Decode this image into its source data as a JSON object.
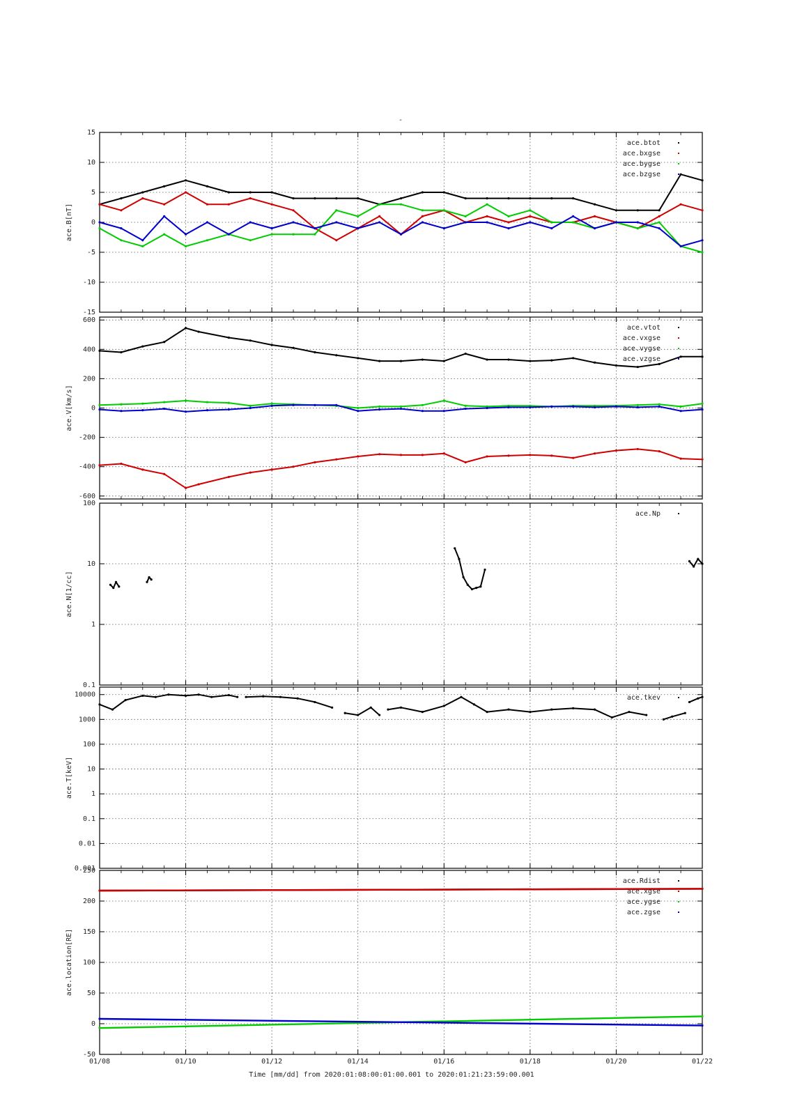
{
  "page": {
    "title": "-",
    "x_caption": "Time [mm/dd]  from 2020:01:08:00:01:00.001  to  2020:01:21:23:59:00.001"
  },
  "x_axis": {
    "range_days": [
      0,
      14
    ],
    "tick_labels": [
      "01/08",
      "01/10",
      "01/12",
      "01/14",
      "01/16",
      "01/18",
      "01/20",
      "01/22"
    ]
  },
  "colors": {
    "black": "#000000",
    "red": "#d00000",
    "green": "#00cc00",
    "blue": "#0000cc"
  },
  "chart_data": [
    {
      "type": "scatter",
      "ylabel": "ace.B[nT]",
      "ylim": [
        -15,
        15
      ],
      "yticks": [
        15,
        10,
        5,
        0,
        -5,
        -10,
        -15
      ],
      "grid": true,
      "legend_position": "top-right",
      "series": [
        {
          "name": "ace.btot",
          "color": "#000000",
          "x": [
            0,
            0.5,
            1,
            1.5,
            2,
            2.5,
            3,
            3.5,
            4,
            4.5,
            5,
            5.5,
            6,
            6.5,
            7,
            7.5,
            8,
            8.5,
            9,
            9.5,
            10,
            10.5,
            11,
            11.5,
            12,
            12.5,
            13,
            13.5,
            14
          ],
          "y": [
            3,
            4,
            5,
            6,
            7,
            6,
            5,
            5,
            5,
            4,
            4,
            4,
            4,
            3,
            4,
            5,
            5,
            4,
            4,
            4,
            4,
            4,
            4,
            3,
            2,
            2,
            2,
            8,
            7
          ]
        },
        {
          "name": "ace.bxgse",
          "color": "#d00000",
          "x": [
            0,
            0.5,
            1,
            1.5,
            2,
            2.5,
            3,
            3.5,
            4,
            4.5,
            5,
            5.5,
            6,
            6.5,
            7,
            7.5,
            8,
            8.5,
            9,
            9.5,
            10,
            10.5,
            11,
            11.5,
            12,
            12.5,
            13,
            13.5,
            14
          ],
          "y": [
            3,
            2,
            4,
            3,
            5,
            3,
            3,
            4,
            3,
            2,
            -1,
            -3,
            -1,
            1,
            -2,
            1,
            2,
            0,
            1,
            0,
            1,
            0,
            0,
            1,
            0,
            -1,
            1,
            3,
            2
          ]
        },
        {
          "name": "ace.bygse",
          "color": "#00cc00",
          "x": [
            0,
            0.5,
            1,
            1.5,
            2,
            2.5,
            3,
            3.5,
            4,
            4.5,
            5,
            5.5,
            6,
            6.5,
            7,
            7.5,
            8,
            8.5,
            9,
            9.5,
            10,
            10.5,
            11,
            11.5,
            12,
            12.5,
            13,
            13.5,
            14
          ],
          "y": [
            -1,
            -3,
            -4,
            -2,
            -4,
            -3,
            -2,
            -3,
            -2,
            -2,
            -2,
            2,
            1,
            3,
            3,
            2,
            2,
            1,
            3,
            1,
            2,
            0,
            0,
            -1,
            0,
            -1,
            0,
            -4,
            -5
          ]
        },
        {
          "name": "ace.bzgse",
          "color": "#0000cc",
          "x": [
            0,
            0.5,
            1,
            1.5,
            2,
            2.5,
            3,
            3.5,
            4,
            4.5,
            5,
            5.5,
            6,
            6.5,
            7,
            7.5,
            8,
            8.5,
            9,
            9.5,
            10,
            10.5,
            11,
            11.5,
            12,
            12.5,
            13,
            13.5,
            14
          ],
          "y": [
            0,
            -1,
            -3,
            1,
            -2,
            0,
            -2,
            0,
            -1,
            0,
            -1,
            0,
            -1,
            0,
            -2,
            0,
            -1,
            0,
            0,
            -1,
            0,
            -1,
            1,
            -1,
            0,
            0,
            -1,
            -4,
            -3
          ]
        }
      ]
    },
    {
      "type": "scatter",
      "ylabel": "ace.V[km/s]",
      "ylim": [
        -620,
        620
      ],
      "yticks": [
        600,
        400,
        200,
        0,
        -200,
        -400,
        -600
      ],
      "grid": true,
      "legend_position": "top-right",
      "series": [
        {
          "name": "ace.vtot",
          "color": "#000000",
          "x": [
            0,
            0.5,
            1,
            1.5,
            2,
            2.3,
            3,
            3.5,
            4,
            4.5,
            5,
            5.5,
            6,
            6.5,
            7,
            7.5,
            8,
            8.5,
            9,
            9.5,
            10,
            10.5,
            11,
            11.5,
            12,
            12.5,
            13,
            13.5,
            14
          ],
          "y": [
            390,
            380,
            420,
            450,
            545,
            520,
            480,
            460,
            430,
            410,
            380,
            360,
            340,
            320,
            320,
            330,
            320,
            370,
            330,
            330,
            320,
            325,
            340,
            310,
            290,
            280,
            300,
            350,
            350
          ]
        },
        {
          "name": "ace.vxgse",
          "color": "#d00000",
          "x": [
            0,
            0.5,
            1,
            1.5,
            2,
            2.3,
            3,
            3.5,
            4,
            4.5,
            5,
            5.5,
            6,
            6.5,
            7,
            7.5,
            8,
            8.5,
            9,
            9.5,
            10,
            10.5,
            11,
            11.5,
            12,
            12.5,
            13,
            13.5,
            14
          ],
          "y": [
            -390,
            -380,
            -420,
            -450,
            -545,
            -520,
            -470,
            -440,
            -420,
            -400,
            -370,
            -350,
            -330,
            -315,
            -320,
            -320,
            -310,
            -370,
            -330,
            -325,
            -320,
            -325,
            -340,
            -310,
            -290,
            -280,
            -295,
            -345,
            -350
          ]
        },
        {
          "name": "ace.vygse",
          "color": "#00cc00",
          "x": [
            0,
            0.5,
            1,
            1.5,
            2,
            2.5,
            3,
            3.5,
            4,
            4.5,
            5,
            5.5,
            6,
            6.5,
            7,
            7.5,
            8,
            8.5,
            9,
            9.5,
            10,
            10.5,
            11,
            11.5,
            12,
            12.5,
            13,
            13.5,
            14
          ],
          "y": [
            20,
            25,
            30,
            40,
            50,
            40,
            35,
            15,
            30,
            25,
            20,
            15,
            0,
            10,
            10,
            20,
            50,
            15,
            10,
            15,
            15,
            10,
            15,
            15,
            15,
            20,
            25,
            10,
            30
          ]
        },
        {
          "name": "ace.vzgse",
          "color": "#0000cc",
          "x": [
            0,
            0.5,
            1,
            1.5,
            2,
            2.5,
            3,
            3.5,
            4,
            4.5,
            5,
            5.5,
            6,
            6.5,
            7,
            7.5,
            8,
            8.5,
            9,
            9.5,
            10,
            10.5,
            11,
            11.5,
            12,
            12.5,
            13,
            13.5,
            14
          ],
          "y": [
            -10,
            -20,
            -15,
            -5,
            -25,
            -15,
            -10,
            0,
            15,
            20,
            20,
            20,
            -20,
            -10,
            -5,
            -20,
            -20,
            -5,
            0,
            5,
            5,
            10,
            10,
            5,
            10,
            5,
            10,
            -20,
            -10
          ]
        }
      ]
    },
    {
      "type": "scatter",
      "ylabel": "ace.N[1/cc]",
      "yscale": "log",
      "ylim": [
        0.1,
        100
      ],
      "yticks": [
        100,
        10,
        1,
        0.1
      ],
      "grid": true,
      "legend_position": "top-right",
      "series": [
        {
          "name": "ace.Np",
          "color": "#000000",
          "segments": [
            {
              "x": [
                0.25,
                0.32,
                0.38,
                0.45
              ],
              "y": [
                4.5,
                4.0,
                5.0,
                4.2
              ]
            },
            {
              "x": [
                1.1,
                1.15,
                1.2
              ],
              "y": [
                5.0,
                6.0,
                5.5
              ]
            },
            {
              "x": [
                8.25,
                8.35,
                8.45,
                8.55,
                8.65,
                8.75,
                8.85,
                8.95
              ],
              "y": [
                18,
                12,
                6,
                4.5,
                3.8,
                4.0,
                4.2,
                8
              ]
            },
            {
              "x": [
                13.7,
                13.8,
                13.9,
                14.0
              ],
              "y": [
                11,
                9,
                12,
                10
              ]
            }
          ]
        }
      ]
    },
    {
      "type": "scatter",
      "ylabel": "ace.T[keV]",
      "yscale": "log",
      "ylim": [
        0.001,
        20000
      ],
      "yticks": [
        10000,
        1000,
        100,
        10,
        1,
        0.1,
        0.01,
        0.001
      ],
      "grid": true,
      "legend_position": "top-right",
      "series": [
        {
          "name": "ace.tkev",
          "color": "#000000",
          "segments": [
            {
              "x": [
                0,
                0.3,
                0.6,
                1,
                1.3,
                1.6,
                2,
                2.3,
                2.6,
                3,
                3.2
              ],
              "y": [
                4000,
                2500,
                6000,
                9000,
                8000,
                10000,
                9000,
                10000,
                8000,
                9500,
                8000
              ]
            },
            {
              "x": [
                3.4,
                3.8,
                4.2,
                4.6,
                5,
                5.4
              ],
              "y": [
                8000,
                8500,
                8000,
                7000,
                5000,
                3000
              ]
            },
            {
              "x": [
                5.7,
                6,
                6.3,
                6.5
              ],
              "y": [
                1800,
                1500,
                3000,
                1500
              ]
            },
            {
              "x": [
                6.7,
                7,
                7.5,
                8,
                8.4,
                8.7,
                9,
                9.5,
                10,
                10.5,
                11,
                11.5,
                11.9,
                12.3,
                12.7
              ],
              "y": [
                2500,
                3000,
                2000,
                3500,
                8000,
                4000,
                2000,
                2500,
                2000,
                2500,
                2800,
                2500,
                1200,
                2000,
                1500
              ]
            },
            {
              "x": [
                13.1,
                13.3,
                13.6
              ],
              "y": [
                1000,
                1300,
                1800
              ]
            },
            {
              "x": [
                13.7,
                13.9,
                14
              ],
              "y": [
                5000,
                7000,
                8000
              ]
            }
          ]
        }
      ]
    },
    {
      "type": "line",
      "ylabel": "ace.location[RE]",
      "ylim": [
        -50,
        250
      ],
      "yticks": [
        250,
        200,
        150,
        100,
        50,
        0,
        -50
      ],
      "grid": true,
      "legend_position": "top-right",
      "series": [
        {
          "name": "ace.Rdist",
          "color": "#000000",
          "x": [
            0,
            14
          ],
          "y": [
            217,
            220
          ]
        },
        {
          "name": "ace.xgse",
          "color": "#d00000",
          "x": [
            0,
            14
          ],
          "y": [
            217,
            220
          ]
        },
        {
          "name": "ace.ygse",
          "color": "#00cc00",
          "x": [
            0,
            14
          ],
          "y": [
            -7,
            12
          ]
        },
        {
          "name": "ace.zgse",
          "color": "#0000cc",
          "x": [
            0,
            14
          ],
          "y": [
            8,
            -3
          ]
        }
      ]
    }
  ]
}
